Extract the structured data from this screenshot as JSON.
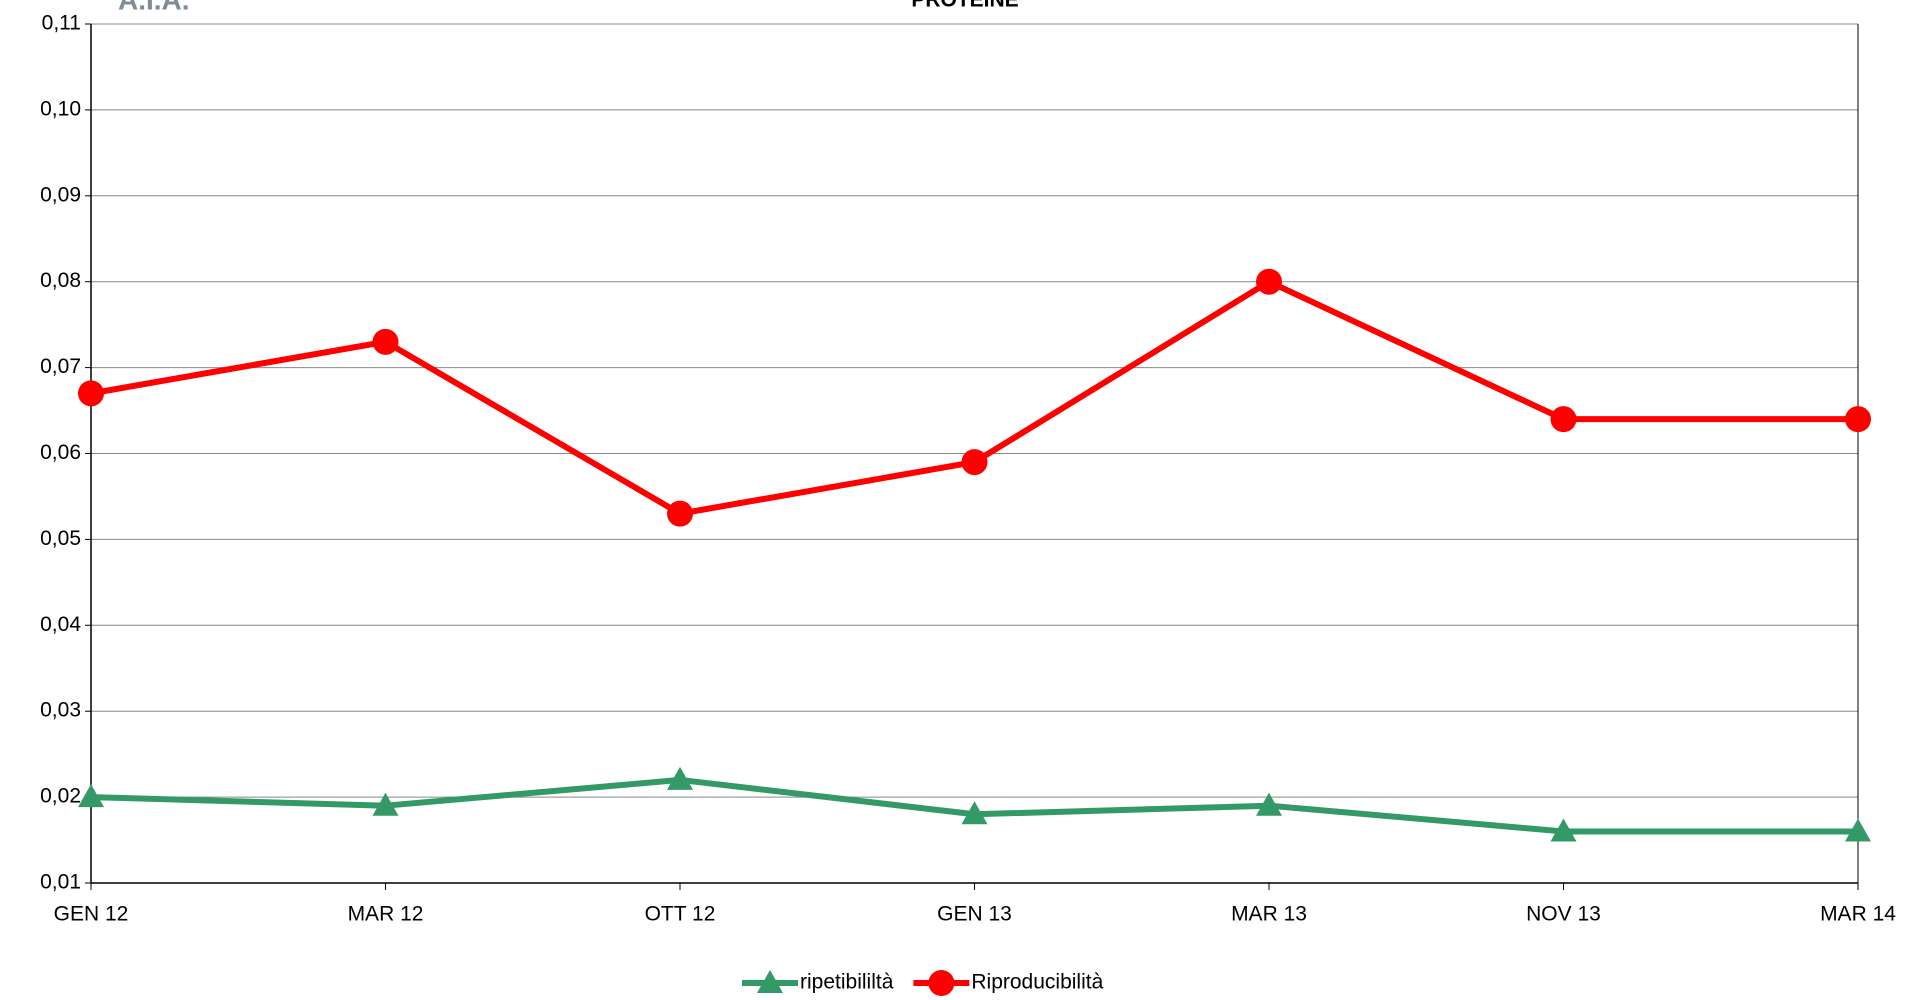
{
  "logo": "A.I.A.",
  "chart_data": {
    "type": "line",
    "title": "PROTEINE",
    "categories": [
      "GEN 12",
      "MAR 12",
      "OTT 12",
      "GEN 13",
      "MAR 13",
      "NOV 13",
      "MAR 14"
    ],
    "series": [
      {
        "name": "ripetibililtà",
        "color": "#339966",
        "marker": "triangle",
        "values": [
          0.02,
          0.019,
          0.022,
          0.018,
          0.019,
          0.016,
          0.016
        ]
      },
      {
        "name": "Riproducibilità",
        "color": "#ff0000",
        "marker": "circle",
        "values": [
          0.067,
          0.073,
          0.053,
          0.059,
          0.08,
          0.064,
          0.064
        ]
      }
    ],
    "ylim": [
      0.01,
      0.11
    ],
    "yticks": [
      {
        "value": 0.01,
        "label": "0,01"
      },
      {
        "value": 0.02,
        "label": "0,02"
      },
      {
        "value": 0.03,
        "label": "0,03"
      },
      {
        "value": 0.04,
        "label": "0,04"
      },
      {
        "value": 0.05,
        "label": "0,05"
      },
      {
        "value": 0.06,
        "label": "0,06"
      },
      {
        "value": 0.07,
        "label": "0,07"
      },
      {
        "value": 0.08,
        "label": "0,08"
      },
      {
        "value": 0.09,
        "label": "0,09"
      },
      {
        "value": 0.1,
        "label": "0,10"
      },
      {
        "value": 0.11,
        "label": "0,11"
      }
    ],
    "grid": true,
    "legend": "bottom"
  }
}
